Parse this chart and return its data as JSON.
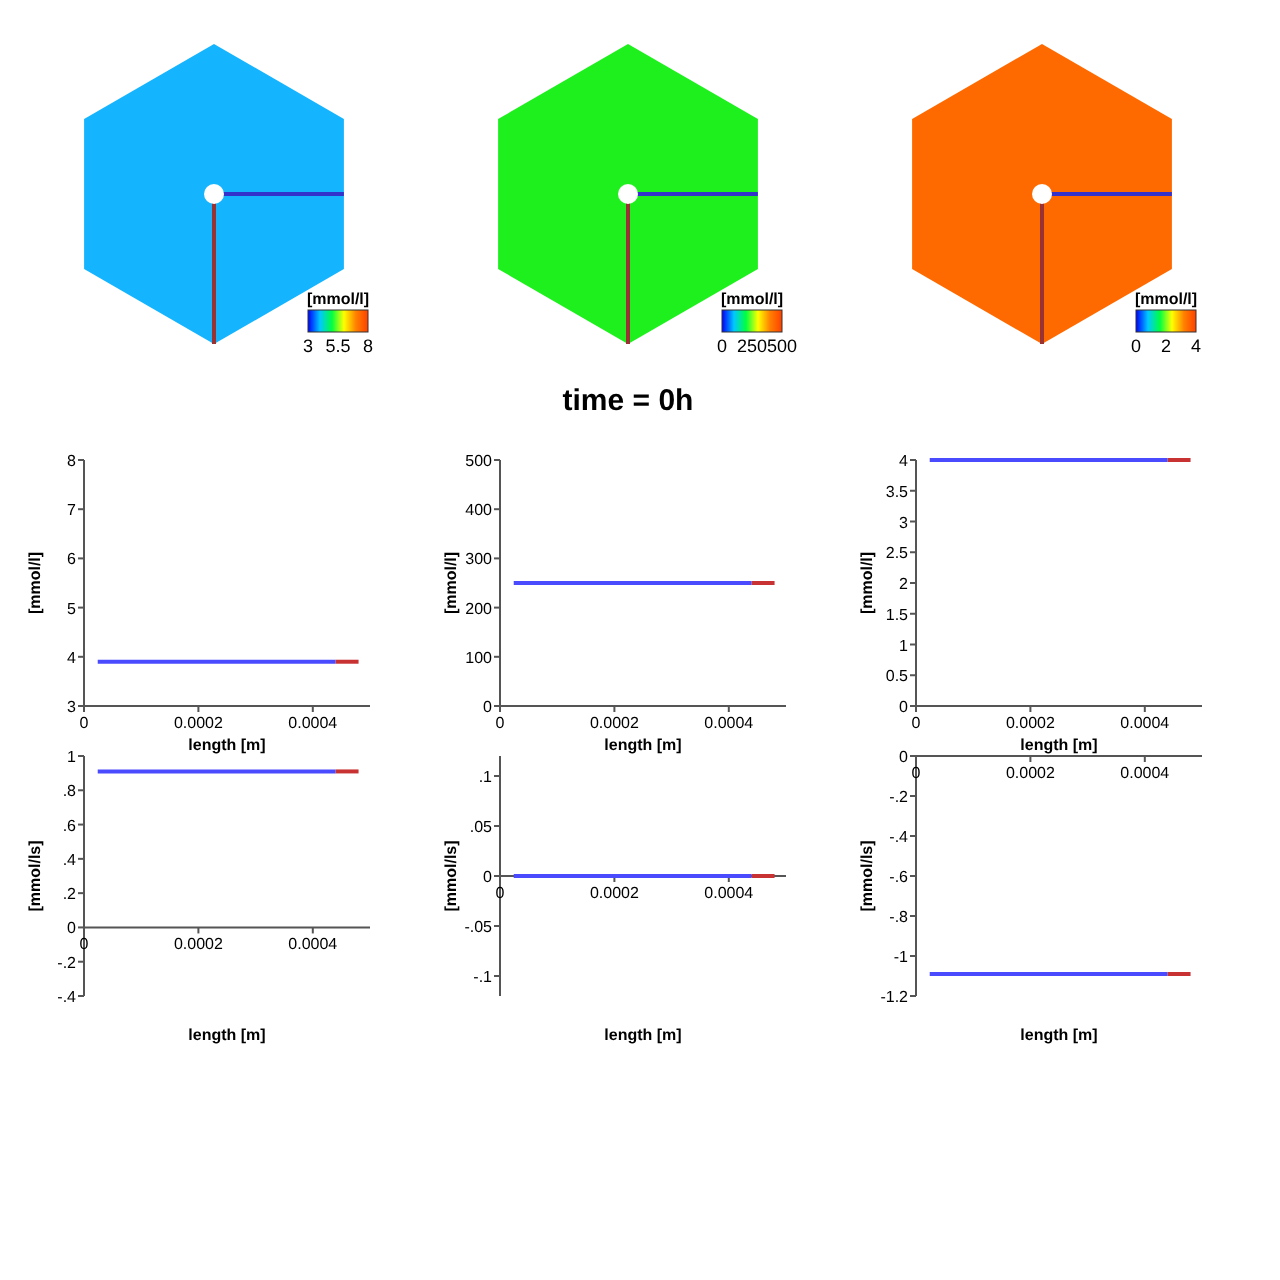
{
  "chart_data": [
    {
      "type": "other",
      "color": "#14b4ff",
      "clabel": "[mmol/l]",
      "annotations": [
        "3",
        "5.5",
        "8"
      ]
    },
    {
      "type": "other",
      "color": "#1ef01e",
      "clabel": "[mmol/l]",
      "annotations": [
        "0",
        "250",
        "500"
      ],
      "title": "time = 0h"
    },
    {
      "type": "other",
      "color": "#ff6a00",
      "clabel": "[mmol/l]",
      "annotations": [
        "0",
        "2",
        "4"
      ]
    },
    {
      "type": "line",
      "xlabel": "length [m]",
      "ylabel": "[mmol/l]",
      "xlim": [
        0,
        0.0005
      ],
      "xticks": [
        0,
        0.0002,
        0.0004
      ],
      "ylim": [
        3,
        8
      ],
      "yticks": [
        3,
        4,
        5,
        6,
        7,
        8
      ],
      "series": [
        {
          "color": "#4a4aff",
          "x": [
            2.4e-05,
            0.00044
          ],
          "values": [
            3.9,
            3.9
          ]
        },
        {
          "color": "#c83232",
          "x": [
            0.00044,
            0.00048
          ],
          "values": [
            3.9,
            3.9
          ]
        }
      ]
    },
    {
      "type": "line",
      "xlabel": "length [m]",
      "ylabel": "[mmol/l]",
      "xlim": [
        0,
        0.0005
      ],
      "xticks": [
        0,
        0.0002,
        0.0004
      ],
      "ylim": [
        0,
        500
      ],
      "yticks": [
        0,
        100,
        200,
        300,
        400,
        500
      ],
      "series": [
        {
          "color": "#4a4aff",
          "x": [
            2.4e-05,
            0.00044
          ],
          "values": [
            250,
            250
          ]
        },
        {
          "color": "#c83232",
          "x": [
            0.00044,
            0.00048
          ],
          "values": [
            250,
            250
          ]
        }
      ]
    },
    {
      "type": "line",
      "xlabel": "length [m]",
      "ylabel": "[mmol/l]",
      "xlim": [
        0,
        0.0005
      ],
      "xticks": [
        0,
        0.0002,
        0.0004
      ],
      "ylim": [
        0,
        4
      ],
      "yticks": [
        0,
        0.5,
        1,
        1.5,
        2,
        2.5,
        3,
        3.5,
        4
      ],
      "series": [
        {
          "color": "#4a4aff",
          "x": [
            2.4e-05,
            0.00044
          ],
          "values": [
            4,
            4
          ]
        },
        {
          "color": "#c83232",
          "x": [
            0.00044,
            0.00048
          ],
          "values": [
            4,
            4
          ]
        }
      ]
    },
    {
      "type": "line",
      "xlabel": "length [m]",
      "ylabel": "[mmol/ls]",
      "xlim": [
        0,
        0.0005
      ],
      "xticks": [
        0,
        0.0002,
        0.0004
      ],
      "ylim": [
        -0.4,
        1
      ],
      "yticks": [
        {
          "value": -0.4,
          "label": "-.4"
        },
        {
          "value": -0.2,
          "label": "-.2"
        },
        0,
        {
          "value": 0.2,
          "label": ".2"
        },
        {
          "value": 0.4,
          "label": ".4"
        },
        {
          "value": 0.6,
          "label": ".6"
        },
        {
          "value": 0.8,
          "label": ".8"
        },
        1
      ],
      "series": [
        {
          "color": "#4a4aff",
          "x": [
            2.4e-05,
            0.00044
          ],
          "values": [
            0.91,
            0.91
          ]
        },
        {
          "color": "#c83232",
          "x": [
            0.00044,
            0.00048
          ],
          "values": [
            0.91,
            0.91
          ]
        }
      ]
    },
    {
      "type": "line",
      "xlabel": "length [m]",
      "ylabel": "[mmol/ls]",
      "xlim": [
        0,
        0.0005
      ],
      "xticks": [
        0,
        0.0002,
        0.0004
      ],
      "ylim": [
        -0.12,
        0.12
      ],
      "yticks": [
        {
          "value": -0.1,
          "label": "-.1"
        },
        {
          "value": -0.05,
          "label": "-.05"
        },
        0,
        {
          "value": 0.05,
          "label": ".05"
        },
        {
          "value": 0.1,
          "label": ".1"
        }
      ],
      "series": [
        {
          "color": "#4a4aff",
          "x": [
            2.4e-05,
            0.00044
          ],
          "values": [
            0,
            0
          ]
        },
        {
          "color": "#c83232",
          "x": [
            0.00044,
            0.00048
          ],
          "values": [
            0,
            0
          ]
        }
      ]
    },
    {
      "type": "line",
      "xlabel": "length [m]",
      "ylabel": "[mmol/ls]",
      "xlim": [
        0,
        0.0005
      ],
      "xticks": [
        0,
        0.0002,
        0.0004
      ],
      "ylim": [
        -1.2,
        0
      ],
      "yticks": [
        -1.2,
        -1,
        {
          "value": -0.8,
          "label": "-.8"
        },
        {
          "value": -0.6,
          "label": "-.6"
        },
        {
          "value": -0.4,
          "label": "-.4"
        },
        {
          "value": -0.2,
          "label": "-.2"
        },
        0
      ],
      "series": [
        {
          "color": "#4a4aff",
          "x": [
            2.4e-05,
            0.00044
          ],
          "values": [
            -1.09,
            -1.09
          ]
        },
        {
          "color": "#c83232",
          "x": [
            0.00044,
            0.00048
          ],
          "values": [
            -1.09,
            -1.09
          ]
        }
      ]
    }
  ]
}
